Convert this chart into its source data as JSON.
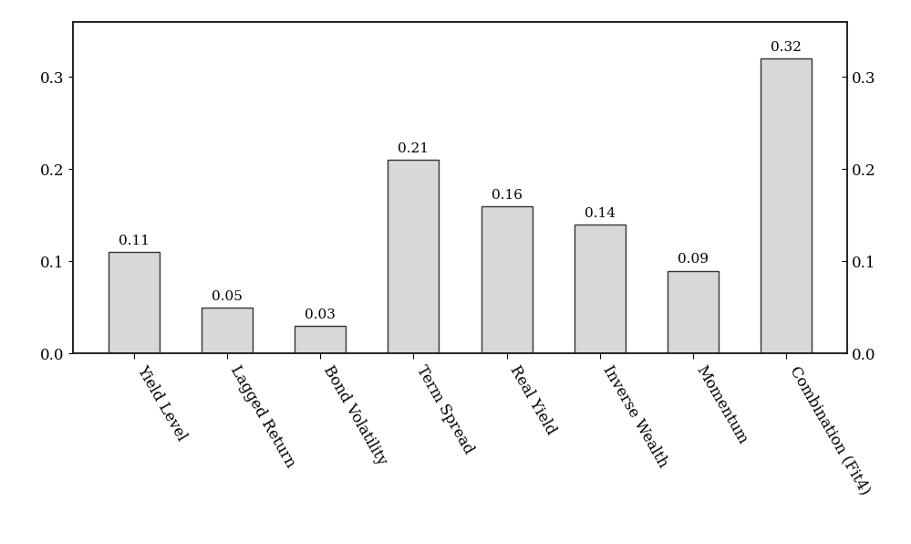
{
  "categories": [
    "Yield Level",
    "Lagged Return",
    "Bond Volatility",
    "Term Spread",
    "Real Yield",
    "Inverse Wealth",
    "Momentum",
    "Combination (Fit4)"
  ],
  "values": [
    0.11,
    0.05,
    0.03,
    0.21,
    0.16,
    0.14,
    0.09,
    0.32
  ],
  "bar_color": "#d8d8d8",
  "bar_edgecolor": "#333333",
  "bar_linewidth": 1.0,
  "ylim": [
    0,
    0.36
  ],
  "yticks": [
    0.0,
    0.1,
    0.2,
    0.3
  ],
  "label_fontsize": 12,
  "value_label_fontsize": 11,
  "background_color": "#ffffff",
  "axes_background": "#ffffff",
  "rotation": -60
}
